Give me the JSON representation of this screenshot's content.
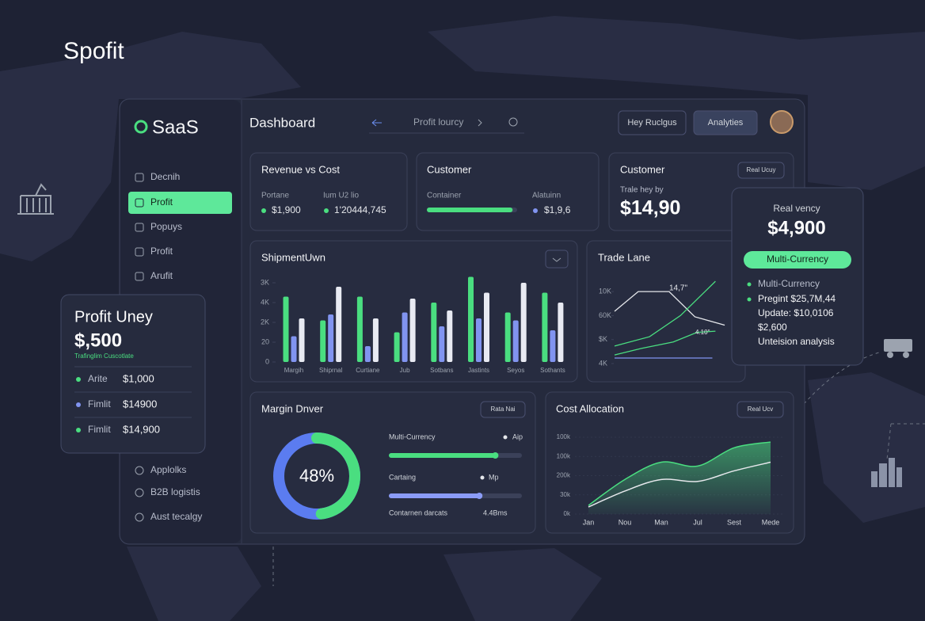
{
  "brand": "Spofit",
  "sidebar": {
    "logo": "SaaS",
    "nav": [
      "Decnih",
      "Profit",
      "Popuys",
      "Profit",
      "Arufit"
    ],
    "active_index": 1,
    "lower": [
      "Applolks",
      "B2B logistis",
      "Aust tecalgy"
    ]
  },
  "header": {
    "title": "Dashboard",
    "search": "Profit lourcy",
    "buttons": [
      "Hey Ruclgus",
      "Analyties"
    ]
  },
  "revenue_card": {
    "title": "Revenue vs Cost",
    "labels": [
      "Portane",
      "Ium U2 lio"
    ],
    "values": [
      "$1,900",
      "1'20444,745"
    ]
  },
  "customer_card": {
    "title": "Customer",
    "labels": [
      "Container",
      "Alatuinn"
    ],
    "progress": 95,
    "value": "$1,9,6"
  },
  "customer_total_card": {
    "title": "Customer",
    "button": "Real Ucuy",
    "caption": "Trale hey by",
    "value": "$14,90"
  },
  "currency_panel": {
    "caption": "Real vency",
    "value": "$4,900",
    "badge": "Multi-Currency",
    "items": [
      "Multi-Currency",
      "Pregint $25,7M,44",
      "Update: $10,0106",
      "$2,600",
      "Unteision analysis"
    ]
  },
  "profit_panel": {
    "title": "Profit Uney",
    "value": "$,500",
    "caption": "Trafinglim Cuscotlate",
    "rows": [
      {
        "label": "Arite",
        "value": "$1,000"
      },
      {
        "label": "Fimlit",
        "value": "$14900"
      },
      {
        "label": "Fimlit",
        "value": "$14,900"
      }
    ]
  },
  "shipment_chart": {
    "type": "bar",
    "title": "ShipmentUwn",
    "categories": [
      "Margih",
      "Shiprnal",
      "Curtiane",
      "Jub",
      "Sotbans",
      "Jastints",
      "Seyos",
      "Sothants"
    ],
    "ylim": [
      0,
      5
    ],
    "yticks": [
      {
        "value": 4,
        "label": "3K"
      },
      {
        "value": 3,
        "label": "4K"
      },
      {
        "value": 2,
        "label": "2K"
      },
      {
        "value": 1,
        "label": "20"
      },
      0
    ],
    "series": [
      {
        "color": "#4ade80",
        "values": [
          3.3,
          2.1,
          3.3,
          1.5,
          3.0,
          4.3,
          2.5,
          3.5
        ]
      },
      {
        "color": "#8194f0",
        "values": [
          1.3,
          2.4,
          0.8,
          2.5,
          1.8,
          2.2,
          2.1,
          1.6
        ]
      },
      {
        "color": "#e8eaf2",
        "values": [
          2.2,
          3.8,
          2.2,
          3.2,
          2.6,
          3.5,
          4.0,
          3.0
        ]
      }
    ]
  },
  "trade_chart": {
    "type": "line",
    "title": "Trade Lane",
    "xlim": [
      0,
      5.5
    ],
    "ylim": [
      0,
      3.5
    ],
    "yticks": [
      {
        "value": 3,
        "label": "10K"
      },
      {
        "value": 2,
        "label": "60K"
      },
      {
        "value": 1,
        "label": "$K"
      },
      {
        "value": 0,
        "label": "4K"
      }
    ],
    "annotations": [
      "14,7\"",
      "4.10\""
    ],
    "series": [
      {
        "color": "#e5e7eb",
        "x": [
          0,
          1.15,
          2.65,
          3.9,
          5.35
        ],
        "values": [
          2.18,
          3.0,
          3.0,
          1.95,
          1.6
        ]
      },
      {
        "color": "#4ade80",
        "x": [
          0,
          1.7,
          3.2,
          4.9
        ],
        "values": [
          0.73,
          1.12,
          2.0,
          3.43
        ]
      },
      {
        "color": "#4ade80",
        "x": [
          0,
          1.3,
          2.85,
          4,
          4.9
        ],
        "values": [
          0.36,
          0.63,
          0.9,
          1.3,
          1.35
        ]
      },
      {
        "color": "#8194f0",
        "x": [
          0,
          4.75
        ],
        "values": [
          0.23,
          0.23
        ]
      }
    ]
  },
  "margin_chart": {
    "type": "donut",
    "title": "Margin Dnver",
    "button": "Rata Nai",
    "values": [
      48
    ],
    "value_labels": [
      "48%"
    ],
    "colors": [
      "#4ade80",
      "#5b7cf0"
    ],
    "bars": [
      {
        "label": "Multi-Currency",
        "tag": "Aip",
        "value": 80,
        "color": "#4ade80"
      },
      {
        "label": "Cartaing",
        "tag": "Mp",
        "value": 68,
        "color": "#8b9cf7"
      },
      {
        "label": "Contarnen darcats",
        "tag": "4.4Bms"
      }
    ]
  },
  "cost_chart": {
    "type": "area",
    "title": "Cost Allocation",
    "button": "Real Ucv",
    "categories": [
      "Jan",
      "Nou",
      "Man",
      "Jul",
      "Sest",
      "Mede"
    ],
    "ylim": [
      0,
      4
    ],
    "yticks": [
      {
        "value": 4,
        "label": "100k"
      },
      {
        "value": 3,
        "label": "100k"
      },
      {
        "value": 2,
        "label": "200k"
      },
      {
        "value": 1,
        "label": "30k"
      },
      {
        "value": 0,
        "label": "0k"
      }
    ],
    "series": [
      {
        "color": "#4ade80",
        "values": [
          0.45,
          1.8,
          2.7,
          2.5,
          3.45,
          3.75
        ]
      },
      {
        "color": "#e5e7eb",
        "values": [
          0.37,
          1.2,
          1.8,
          1.7,
          2.25,
          2.7
        ]
      }
    ]
  }
}
